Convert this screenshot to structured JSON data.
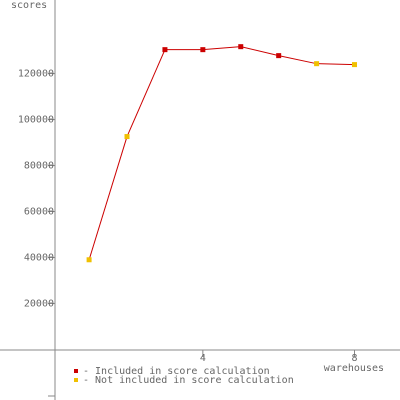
{
  "chart_data": {
    "type": "line",
    "y_label": "scores",
    "x_label": "warehouses",
    "x": [
      1,
      2,
      3,
      4,
      5,
      6,
      7,
      8
    ],
    "line_color": "#cc0000",
    "series": [
      {
        "name": "- Included in score calculation",
        "color": "#cc0000",
        "values": [
          null,
          null,
          130400,
          130400,
          131700,
          127800,
          null,
          null
        ]
      },
      {
        "name": "- Not included in score calculation",
        "color": "#f0c000",
        "values": [
          39000,
          92600,
          null,
          null,
          null,
          null,
          124300,
          123900
        ]
      }
    ],
    "xlim": [
      -1.35,
      9.2
    ],
    "ylim": [
      -22000,
      152000
    ],
    "xticks": [
      4,
      8
    ],
    "yticks": [
      20000,
      40000,
      60000,
      80000,
      100000,
      120000
    ]
  }
}
